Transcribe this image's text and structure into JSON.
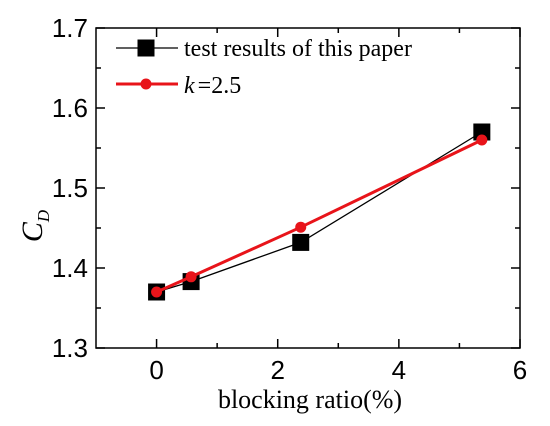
{
  "chart_data": {
    "type": "line",
    "title": "",
    "xlabel": "blocking ratio(%)",
    "ylabel": "C",
    "ylabel_sub": "D",
    "xlim": [
      -1,
      6
    ],
    "ylim": [
      1.3,
      1.7
    ],
    "xticks": [
      0,
      2,
      4,
      6
    ],
    "xtick_labels": [
      "0",
      "2",
      "4",
      "6"
    ],
    "yticks": [
      1.3,
      1.4,
      1.5,
      1.6,
      1.7
    ],
    "ytick_labels": [
      "1.3",
      "1.4",
      "1.5",
      "1.6",
      "1.7"
    ],
    "grid": false,
    "legend_position": "top-left",
    "series": [
      {
        "name": "test results of this paper",
        "color": "#000000",
        "marker": "square",
        "x": [
          0,
          0.57,
          2.38,
          5.37
        ],
        "y": [
          1.37,
          1.383,
          1.432,
          1.57
        ]
      },
      {
        "name": "=2.5",
        "name_prefix": "k",
        "color": "#e8141a",
        "marker": "circle",
        "x": [
          0,
          0.57,
          2.38,
          5.37
        ],
        "y": [
          1.37,
          1.389,
          1.451,
          1.56
        ]
      }
    ]
  }
}
